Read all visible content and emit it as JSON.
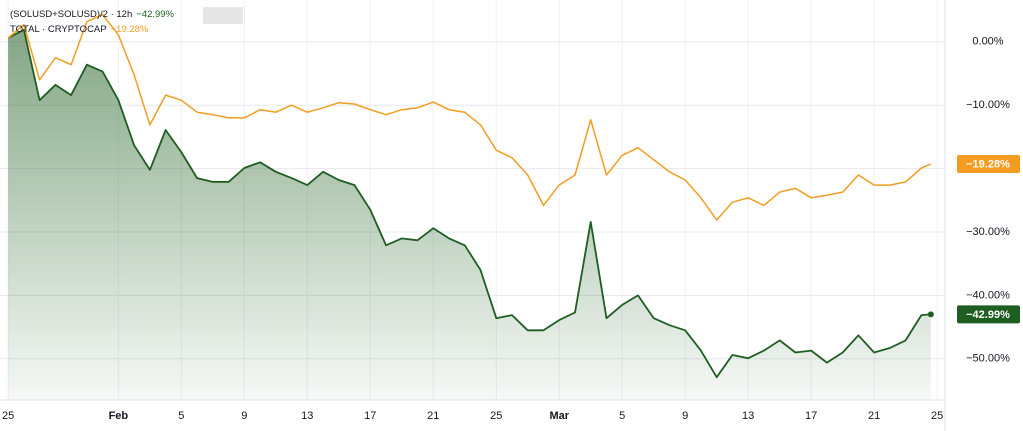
{
  "chart_data": {
    "type": "line",
    "x": [
      0,
      1,
      2,
      3,
      4,
      5,
      6,
      7,
      8,
      9,
      10,
      11,
      12,
      13,
      14,
      15,
      16,
      17,
      18,
      19,
      20,
      21,
      22,
      23,
      24,
      25,
      26,
      27,
      28,
      29,
      30,
      31,
      32,
      33,
      34,
      35,
      36,
      37,
      38,
      39,
      40,
      41,
      42,
      43,
      44,
      45,
      46,
      47,
      48,
      49,
      50,
      51,
      52,
      53,
      54,
      55,
      56,
      57,
      58,
      58.6
    ],
    "xlim": [
      -0.2,
      59.5
    ],
    "xticks": [
      {
        "value": 0,
        "label": "25"
      },
      {
        "value": 7,
        "label": "Feb"
      },
      {
        "value": 11,
        "label": "5"
      },
      {
        "value": 15,
        "label": "9"
      },
      {
        "value": 19,
        "label": "13"
      },
      {
        "value": 23,
        "label": "17"
      },
      {
        "value": 27,
        "label": "21"
      },
      {
        "value": 31,
        "label": "25"
      },
      {
        "value": 35,
        "label": "Mar"
      },
      {
        "value": 39,
        "label": "5"
      },
      {
        "value": 43,
        "label": "9"
      },
      {
        "value": 47,
        "label": "13"
      },
      {
        "value": 51,
        "label": "17"
      },
      {
        "value": 55,
        "label": "21"
      },
      {
        "value": 59,
        "label": "25"
      }
    ],
    "ylim": [
      -56.5,
      6.6
    ],
    "yticks": [
      {
        "value": 0,
        "label": "0.00%"
      },
      {
        "value": -10,
        "label": "−10.00%"
      },
      {
        "value": -20,
        "label": "−20.00%"
      },
      {
        "value": -30,
        "label": "−30.00%"
      },
      {
        "value": -40,
        "label": "−40.00%"
      },
      {
        "value": -50,
        "label": "−50.00%"
      }
    ],
    "grid": true,
    "series": [
      {
        "name": "(SOLUSD+SOLUSD)/2 · 12h",
        "color": "#1e5e20",
        "area": true,
        "values": [
          0.6,
          1.9,
          -9.2,
          -6.8,
          -8.4,
          -3.6,
          -4.7,
          -9.2,
          -16.3,
          -20.2,
          -13.9,
          -17.4,
          -21.5,
          -22.1,
          -22.1,
          -19.9,
          -19.0,
          -20.5,
          -21.5,
          -22.6,
          -20.5,
          -21.8,
          -22.6,
          -26.5,
          -32.1,
          -31.0,
          -31.3,
          -29.4,
          -31.0,
          -32.1,
          -36.0,
          -43.6,
          -43.1,
          -45.5,
          -45.5,
          -43.9,
          -42.7,
          -28.4,
          -43.6,
          -41.5,
          -40.0,
          -43.6,
          -44.7,
          -45.5,
          -48.7,
          -52.9,
          -49.4,
          -49.9,
          -48.7,
          -47.1,
          -49.0,
          -48.7,
          -50.6,
          -49.0,
          -46.3,
          -49.0,
          -48.3,
          -47.1,
          -43.1,
          -42.99
        ],
        "value_labels": [
          null,
          null,
          null,
          null,
          null,
          null,
          null,
          null,
          null,
          null,
          null,
          null,
          null,
          null,
          null,
          null,
          null,
          null,
          null,
          null,
          null,
          null,
          null,
          null,
          null,
          null,
          null,
          null,
          null,
          null,
          null,
          null,
          null,
          null,
          null,
          null,
          null,
          null,
          null,
          null,
          null,
          null,
          null,
          null,
          null,
          null,
          null,
          null,
          null,
          null,
          null,
          null,
          null,
          null,
          null,
          null,
          null,
          null,
          null,
          "−42.99%"
        ]
      },
      {
        "name": "TOTAL · CRYPTOCAP",
        "color": "#f39c1f",
        "area": false,
        "values": [
          0.6,
          2.7,
          -6.0,
          -2.5,
          -3.6,
          3.2,
          4.3,
          1.1,
          -5.2,
          -13.1,
          -8.4,
          -9.2,
          -11.1,
          -11.5,
          -12.0,
          -12.0,
          -10.7,
          -11.1,
          -10.0,
          -11.1,
          -10.4,
          -9.6,
          -9.8,
          -10.7,
          -11.5,
          -10.7,
          -10.4,
          -9.5,
          -10.7,
          -11.1,
          -13.1,
          -17.1,
          -18.3,
          -21.0,
          -25.8,
          -22.6,
          -21.0,
          -12.3,
          -21.0,
          -17.9,
          -16.7,
          -18.6,
          -20.5,
          -21.8,
          -24.6,
          -28.1,
          -25.3,
          -24.6,
          -25.8,
          -23.7,
          -23.1,
          -24.6,
          -24.2,
          -23.7,
          -21.0,
          -22.6,
          -22.6,
          -22.1,
          -19.9,
          -19.28
        ],
        "value_labels": [
          null,
          null,
          null,
          null,
          null,
          null,
          null,
          null,
          null,
          null,
          null,
          null,
          null,
          null,
          null,
          null,
          null,
          null,
          null,
          null,
          null,
          null,
          null,
          null,
          null,
          null,
          null,
          null,
          null,
          null,
          null,
          null,
          null,
          null,
          null,
          null,
          null,
          null,
          null,
          null,
          null,
          null,
          null,
          null,
          null,
          null,
          null,
          null,
          null,
          null,
          null,
          null,
          null,
          null,
          null,
          null,
          null,
          null,
          null,
          "−19.28%"
        ]
      }
    ]
  }
}
